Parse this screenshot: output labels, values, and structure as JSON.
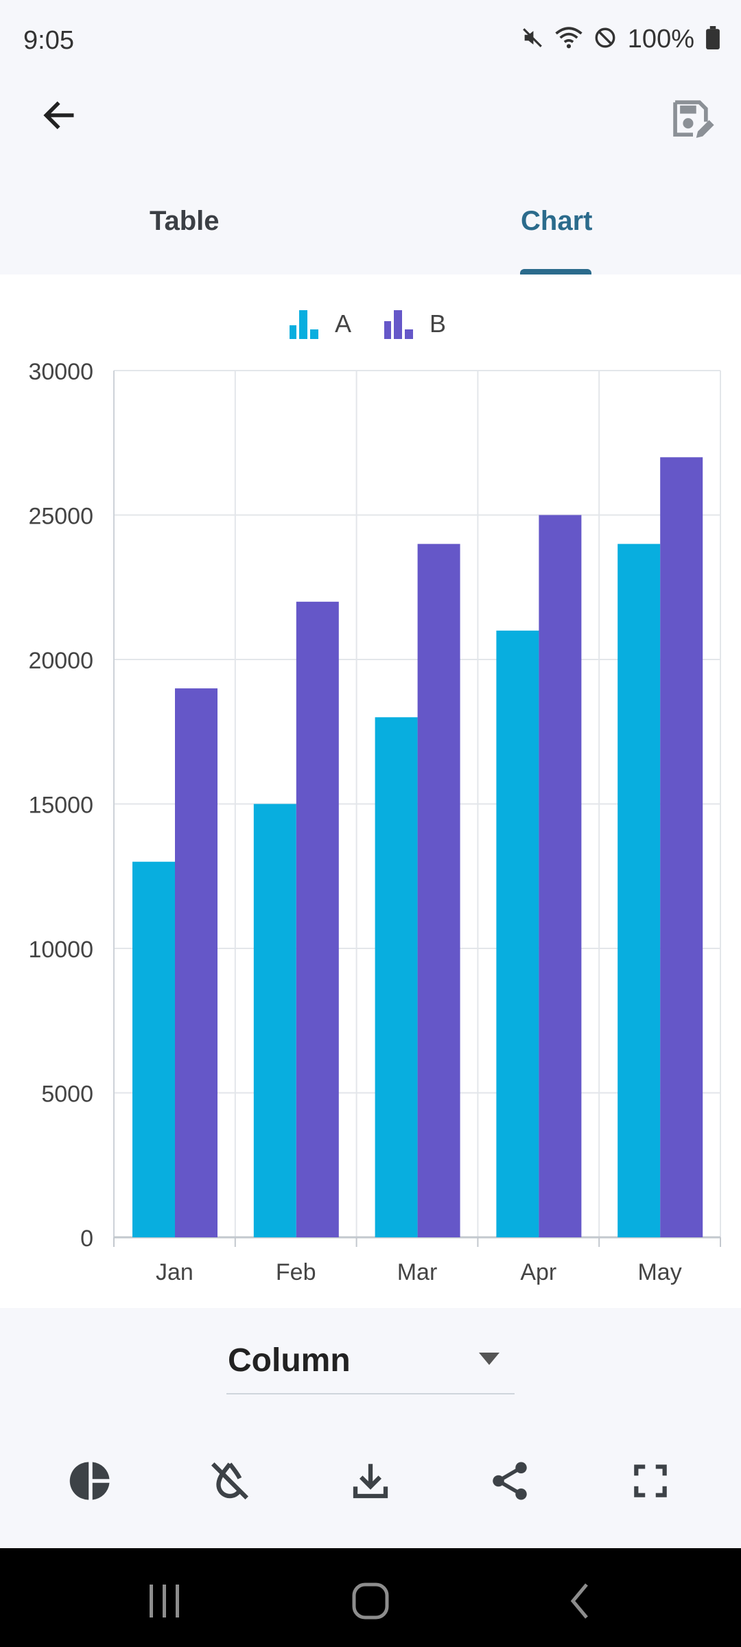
{
  "status_bar": {
    "time": "9:05",
    "battery": "100%",
    "icons": [
      "mute-icon",
      "wifi-icon",
      "do-not-disturb-icon",
      "battery-icon"
    ]
  },
  "app_bar": {
    "back_icon": "arrow-back-icon",
    "action_icon": "save-edit-icon"
  },
  "tabs": [
    {
      "label": "Table",
      "selected": false
    },
    {
      "label": "Chart",
      "selected": true
    }
  ],
  "colors": {
    "series_a": "#08aedf",
    "series_b": "#6557c8",
    "accent": "#2b6b8c"
  },
  "chart_data": {
    "type": "bar",
    "categories": [
      "Jan",
      "Feb",
      "Mar",
      "Apr",
      "May"
    ],
    "series": [
      {
        "name": "A",
        "values": [
          13000,
          15000,
          18000,
          21000,
          24000
        ]
      },
      {
        "name": "B",
        "values": [
          19000,
          22000,
          24000,
          25000,
          27000
        ]
      }
    ],
    "y_ticks": [
      "0",
      "5000",
      "10000",
      "15000",
      "20000",
      "25000",
      "30000"
    ],
    "ylim": [
      0,
      30000
    ],
    "grid": true,
    "legend": "top-center"
  },
  "chart_type_select": {
    "value": "Column"
  },
  "toolbar": {
    "items": [
      "pie-chart-icon",
      "hide-labels-icon",
      "download-icon",
      "share-icon",
      "fullscreen-icon"
    ]
  },
  "nav_bar": {
    "items": [
      "recents-icon",
      "home-icon",
      "back-nav-icon"
    ]
  }
}
